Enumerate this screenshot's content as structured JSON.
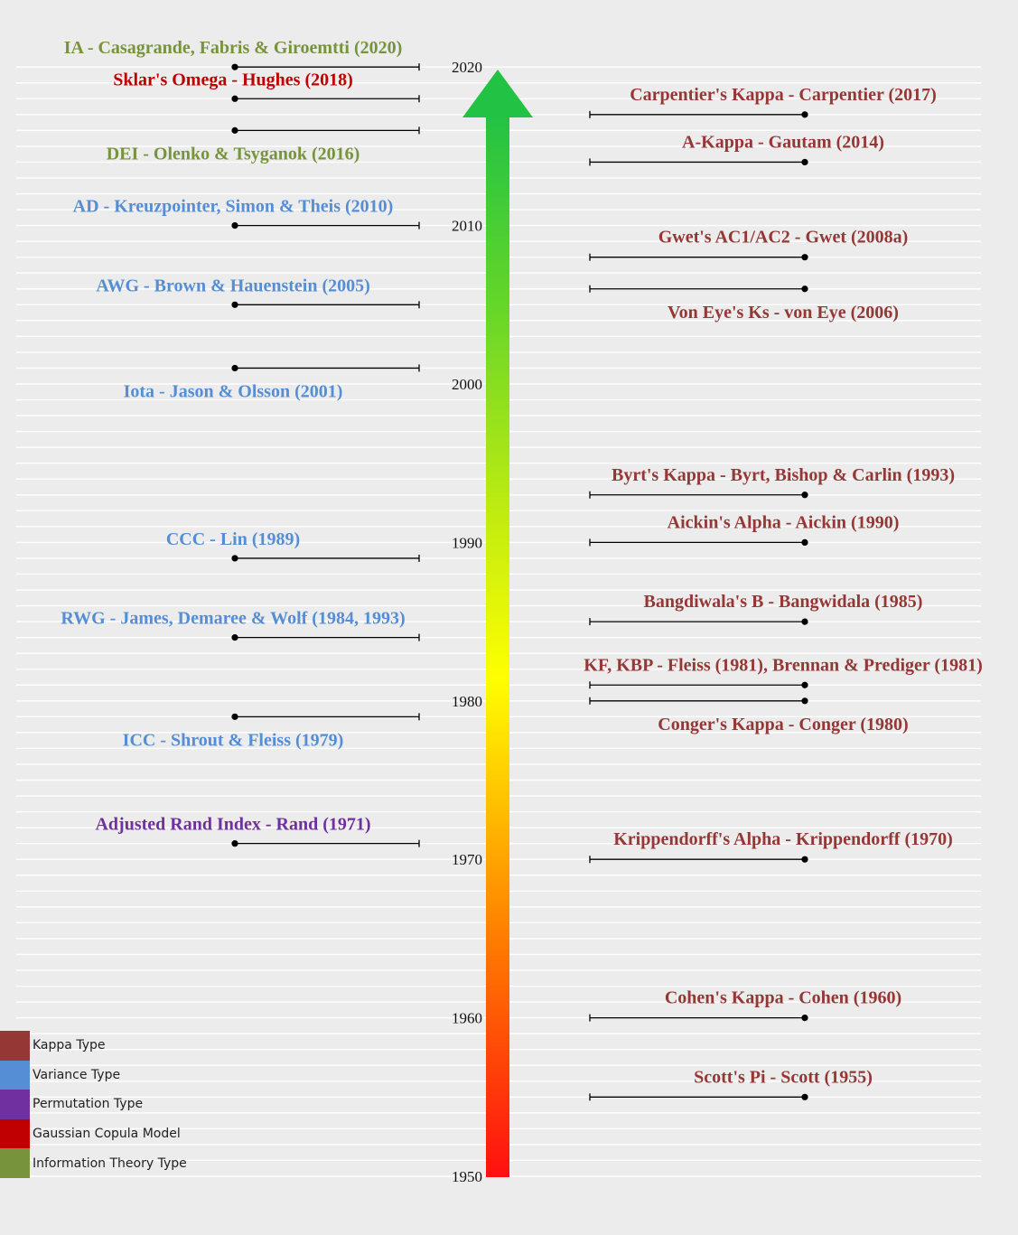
{
  "timeline": {
    "year_ticks": [
      2020,
      2010,
      2000,
      1990,
      1980,
      1970,
      1960,
      1950
    ],
    "colors": {
      "kappa": "#953735",
      "variance": "#558ed5",
      "permutation": "#7030a0",
      "gaussian": "#c00000",
      "information": "#77933c"
    },
    "left_events": [
      {
        "label": "IA - Casagrande, Fabris & Giroemtti (2020)",
        "year": 2020,
        "type": "information"
      },
      {
        "label": "Sklar's Omega - Hughes (2018)",
        "year": 2018,
        "type": "gaussian"
      },
      {
        "label": "DEI - Olenko & Tsyganok (2016)",
        "year": 2016,
        "type": "information"
      },
      {
        "label": "AD - Kreuzpointer, Simon & Theis (2010)",
        "year": 2010,
        "type": "variance"
      },
      {
        "label": "AWG - Brown & Hauenstein (2005)",
        "year": 2005,
        "type": "variance"
      },
      {
        "label": "Iota - Jason & Olsson (2001)",
        "year": 2001,
        "type": "variance"
      },
      {
        "label": "CCC - Lin (1989)",
        "year": 1989,
        "type": "variance"
      },
      {
        "label": "RWG - James, Demaree & Wolf (1984, 1993)",
        "year": 1984,
        "type": "variance"
      },
      {
        "label": "ICC - Shrout & Fleiss (1979)",
        "year": 1979,
        "type": "variance"
      },
      {
        "label": "Adjusted Rand Index - Rand (1971)",
        "year": 1971,
        "type": "permutation"
      }
    ],
    "right_events": [
      {
        "label": "Carpentier's Kappa - Carpentier (2017)",
        "year": 2017,
        "type": "kappa"
      },
      {
        "label": "A-Kappa - Gautam (2014)",
        "year": 2014,
        "type": "kappa"
      },
      {
        "label": "Gwet's AC1/AC2 - Gwet (2008a)",
        "year": 2008,
        "type": "kappa"
      },
      {
        "label": "Von Eye's Ks - von Eye (2006)",
        "year": 2006,
        "type": "kappa"
      },
      {
        "label": "Byrt's Kappa - Byrt, Bishop & Carlin (1993)",
        "year": 1993,
        "type": "kappa"
      },
      {
        "label": "Aickin's Alpha - Aickin (1990)",
        "year": 1990,
        "type": "kappa"
      },
      {
        "label": "Bangdiwala's B - Bangwidala (1985)",
        "year": 1985,
        "type": "kappa"
      },
      {
        "label": "KF, KBP - Fleiss (1981), Brennan & Prediger (1981)",
        "year": 1981,
        "type": "kappa"
      },
      {
        "label": "Conger's Kappa - Conger (1980)",
        "year": 1980,
        "type": "kappa"
      },
      {
        "label": "Krippendorff's Alpha - Krippendorff (1970)",
        "year": 1970,
        "type": "kappa"
      },
      {
        "label": "Cohen's Kappa - Cohen (1960)",
        "year": 1960,
        "type": "kappa"
      },
      {
        "label": "Scott's Pi - Scott (1955)",
        "year": 1955,
        "type": "kappa"
      }
    ]
  },
  "legend": [
    {
      "label": "Kappa Type",
      "color": "#953735"
    },
    {
      "label": "Variance Type",
      "color": "#558ed5"
    },
    {
      "label": "Permutation Type",
      "color": "#7030a0"
    },
    {
      "label": "Gaussian Copula Model",
      "color": "#c00000"
    },
    {
      "label": "Information Theory Type",
      "color": "#77933c"
    }
  ]
}
